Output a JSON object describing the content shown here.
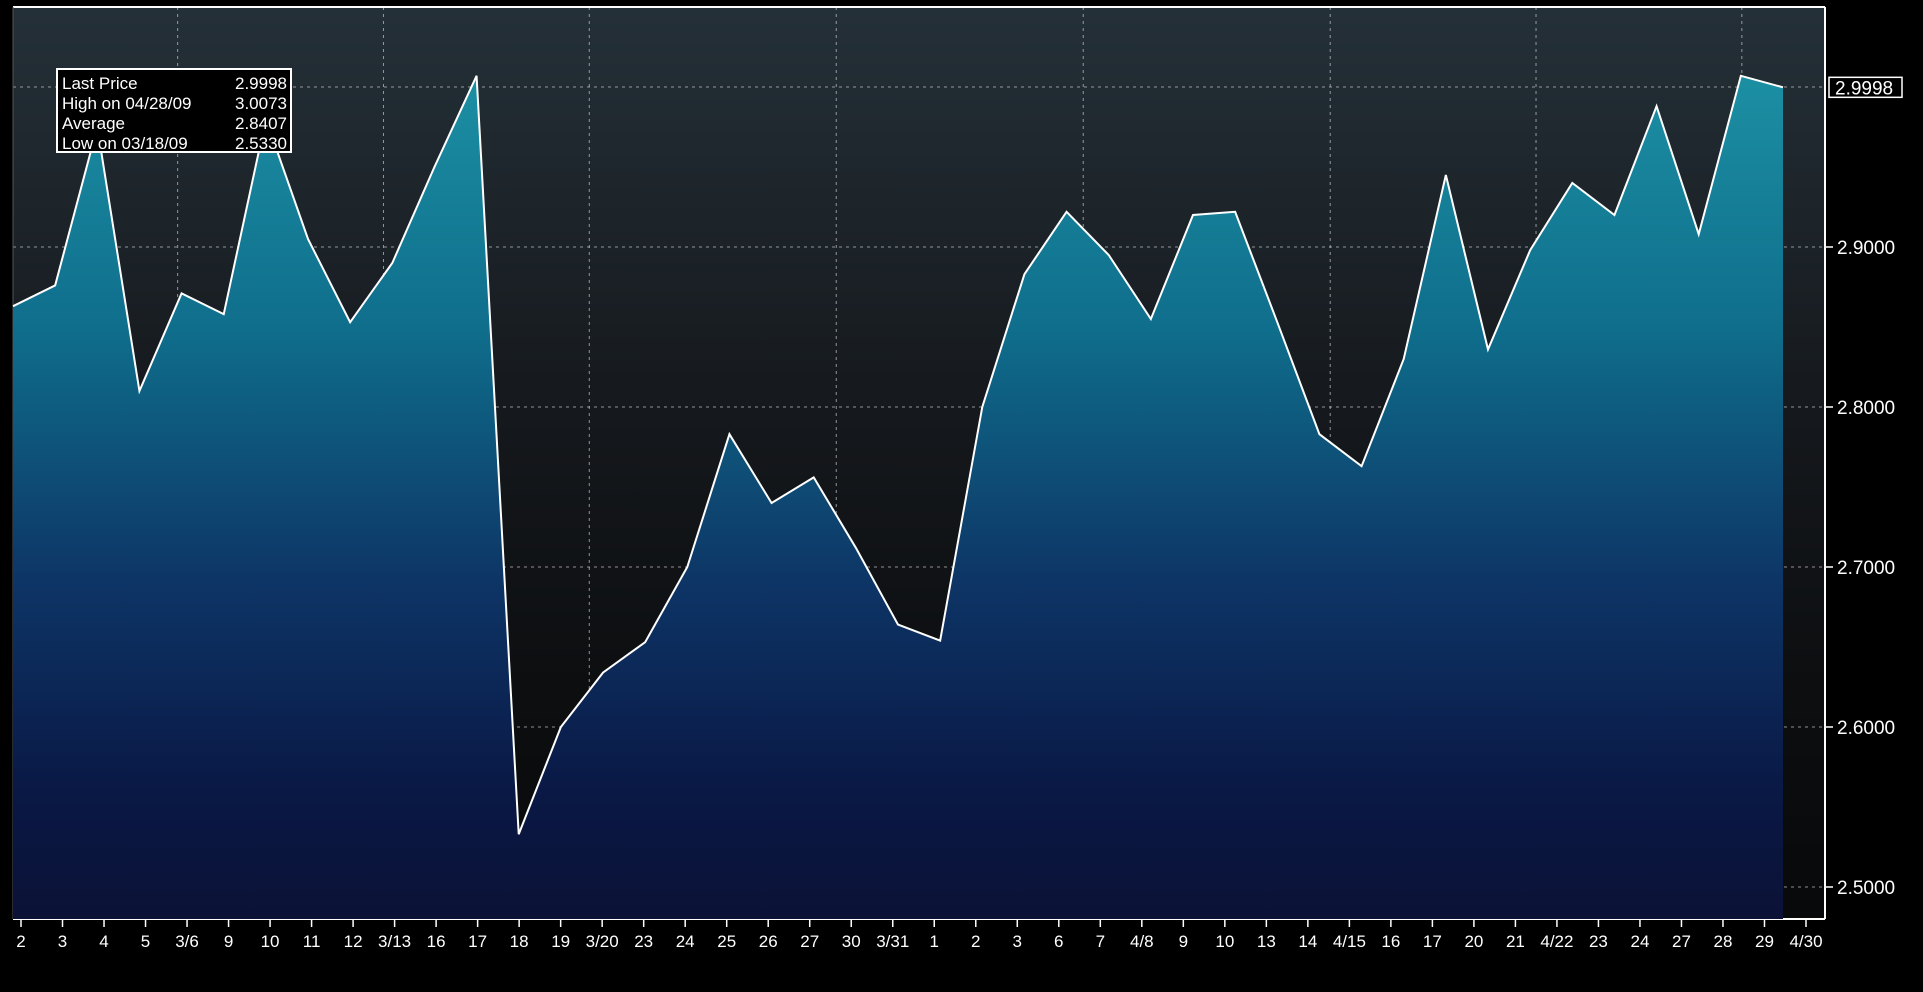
{
  "chart_data": {
    "type": "area",
    "title": "",
    "xlabel": "",
    "ylabel": "",
    "grid": true,
    "ylim": [
      2.48,
      3.05
    ],
    "y_ticks": [
      "2.5000",
      "2.6000",
      "2.7000",
      "2.8000",
      "2.9000"
    ],
    "last_price_label": "2.9998",
    "x_tick_labels": [
      "2",
      "3",
      "4",
      "5",
      "3/6",
      "9",
      "10",
      "11",
      "12",
      "3/13",
      "16",
      "17",
      "18",
      "19",
      "3/20",
      "23",
      "24",
      "25",
      "26",
      "27",
      "30",
      "3/31",
      "1",
      "2",
      "3",
      "6",
      "7",
      "4/8",
      "9",
      "10",
      "13",
      "14",
      "4/15",
      "16",
      "17",
      "20",
      "21",
      "4/22",
      "23",
      "24",
      "27",
      "28",
      "29",
      "4/30"
    ],
    "series": [
      {
        "values": [
          2.863,
          2.876,
          2.975,
          2.81,
          2.871,
          2.858,
          2.98,
          2.905,
          2.853,
          2.89,
          2.95,
          3.007,
          2.533,
          2.6,
          2.634,
          2.653,
          2.7,
          2.783,
          2.74,
          2.756,
          2.712,
          2.664,
          2.654,
          2.8,
          2.883,
          2.922,
          2.895,
          2.855,
          2.92,
          2.922,
          2.853,
          2.783,
          2.763,
          2.83,
          2.945,
          2.836,
          2.898,
          2.94,
          2.92,
          2.988,
          2.908,
          3.007,
          2.9998
        ]
      }
    ],
    "legend": {
      "position": "top-left",
      "rows": [
        {
          "label": "Last Price",
          "value": "2.9998"
        },
        {
          "label": "High on 04/28/09",
          "value": "3.0073"
        },
        {
          "label": "Average",
          "value": "2.8407"
        },
        {
          "label": "Low on 03/18/09",
          "value": "2.5330"
        }
      ]
    },
    "colors": {
      "background": "#000000",
      "line": "#ffffff",
      "fill_top": "#1a8a9e",
      "fill_bottom": "#0a1440",
      "grid": "#c8c8c8"
    }
  }
}
